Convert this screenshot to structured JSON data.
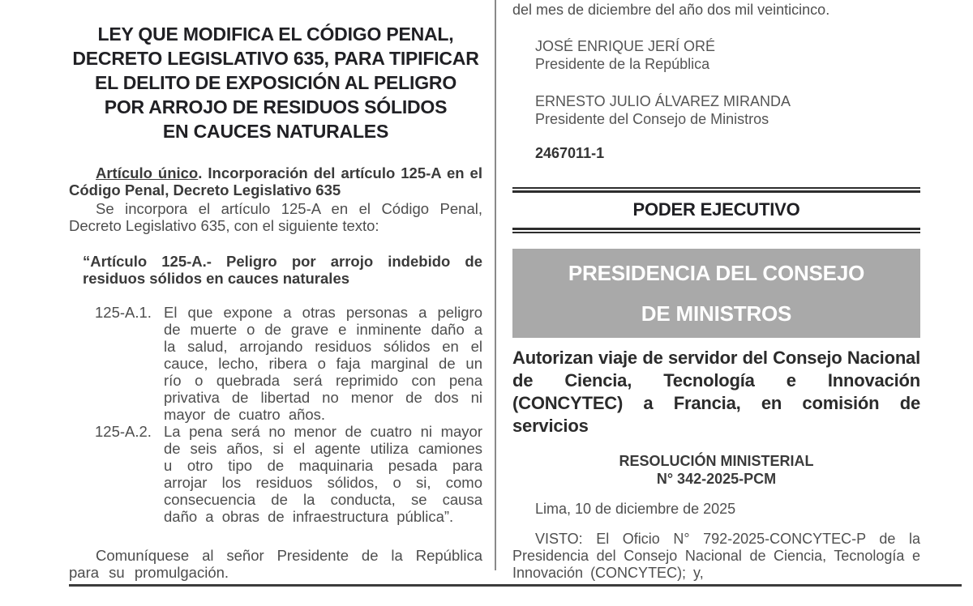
{
  "left_column": {
    "title": "LEY QUE MODIFICA EL CÓDIGO PENAL,\nDECRETO LEGISLATIVO 635, PARA TIPIFICAR\nEL DELITO DE EXPOSICIÓN AL PELIGRO\nPOR ARROJO DE RESIDUOS SÓLIDOS\nEN CAUCES NATURALES",
    "article_heading": {
      "underlined": "Artículo único",
      "rest": ". Incorporación del artículo 125-A en el Código Penal, Decreto Legislativo 635"
    },
    "intro_paragraph": "Se incorpora el artículo 125-A en el Código Penal, Decreto Legislativo 635, con el siguiente texto:",
    "quoted_article": {
      "heading": "“Artículo 125-A.- Peligro por arrojo indebido de residuos sólidos en cauces naturales",
      "items": [
        {
          "label": "125-A.1.",
          "text": "El que expone a otras personas a peligro de muerte o de grave e inminente daño a la salud, arrojando residuos sólidos en el cauce, lecho, ribera o faja marginal de un río o quebrada será reprimido con pena privativa de libertad no menor de dos ni mayor de cuatro años."
        },
        {
          "label": "125-A.2.",
          "text": "La pena será no menor de cuatro ni mayor de seis años, si el agente utiliza camiones u otro tipo de maquinaria pesada para arrojar los residuos sólidos, o si, como consecuencia de la conducta, se causa daño a obras de infraestructura pública”."
        }
      ]
    },
    "closing_paragraph": "Comuníquese al señor Presidente de la República para su promulgación."
  },
  "right_column": {
    "continuation_line": "del mes de diciembre del año dos mil veinticinco.",
    "signatures": [
      {
        "name": "JOSÉ ENRIQUE JERÍ ORÉ",
        "role": "Presidente de la República"
      },
      {
        "name": "ERNESTO JULIO ÁLVAREZ MIRANDA",
        "role": "Presidente del Consejo de Ministros"
      }
    ],
    "gazette_code": "2467011-1",
    "section_banner": "PODER EJECUTIVO",
    "ministry_box": "PRESIDENCIA DEL CONSEJO\nDE MINISTROS",
    "resolution_title": "Autorizan viaje de servidor del Consejo Nacional de Ciencia, Tecnología e Innovación (CONCYTEC) a Francia, en comisión de servicios",
    "resolution_number": "RESOLUCIÓN MINISTERIAL\nN° 342-2025-PCM",
    "place_date": "Lima, 10 de diciembre de 2025",
    "visto_paragraph": "VISTO: El Oficio N° 792-2025-CONCYTEC-P de la Presidencia del Consejo Nacional de Ciencia, Tecnología e Innovación (CONCYTEC); y,"
  },
  "colors": {
    "ministry_box_background": "#a9a9a9",
    "ministry_box_text": "#ffffff",
    "rule_dark": "#2d2d2d",
    "divider_gray": "#8a8a8a",
    "body_text": "#4d4d4d"
  }
}
